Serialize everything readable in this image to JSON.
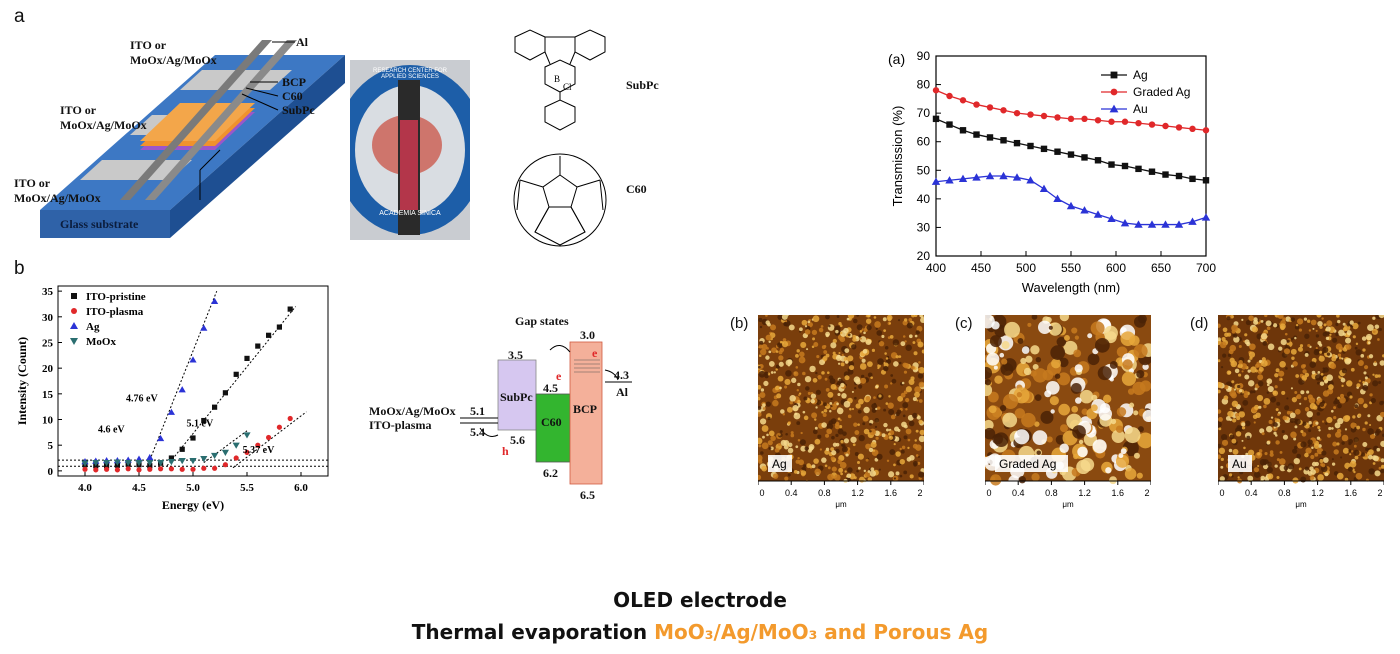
{
  "figure_a_left": {
    "panel_label": "a",
    "device_labels": {
      "top_electrode": [
        "ITO or",
        "MoOx/Ag/MoOx"
      ],
      "mid_electrode": [
        "ITO or",
        "MoOx/Ag/MoOx"
      ],
      "low_electrode": [
        "ITO or",
        "MoOx/Ag/MoOx"
      ],
      "substrate": "Glass substrate",
      "al": "Al",
      "bcp": "BCP",
      "c60": "C60",
      "subpc": "SubPc"
    },
    "photo_text": [
      "RESEARCH CENTER FOR APPLIED SCIENCES",
      "ACADEMIA SINICA"
    ],
    "molecules": {
      "subpc": "SubPc",
      "c60": "C60",
      "atom_b": "B",
      "atom_cl": "Cl"
    }
  },
  "figure_b_left": {
    "panel_label": "b",
    "chart_data": {
      "type": "scatter",
      "xlabel": "Energy (eV)",
      "ylabel": "Intensity (Count)",
      "xlim": [
        3.75,
        6.25
      ],
      "ylim": [
        -1,
        36
      ],
      "xticks": [
        "4.0",
        "4.5",
        "5.0",
        "5.5",
        "6.0"
      ],
      "yticks": [
        "0",
        "5",
        "10",
        "15",
        "20",
        "25",
        "30",
        "35"
      ],
      "legend_position": "top-left",
      "series": [
        {
          "name": "ITO-pristine",
          "color": "#111111",
          "marker": "square",
          "x": [
            4.0,
            4.1,
            4.2,
            4.3,
            4.4,
            4.5,
            4.6,
            4.7,
            4.8,
            4.9,
            5.0,
            5.1,
            5.2,
            5.3,
            5.4,
            5.5,
            5.6,
            5.7,
            5.8,
            5.9
          ],
          "y": [
            1.2,
            1.0,
            1.0,
            1.1,
            1.3,
            1.2,
            1.0,
            1.5,
            2.5,
            4.2,
            6.4,
            9.8,
            12.4,
            15.2,
            18.8,
            21.9,
            24.3,
            26.4,
            28.0,
            31.5
          ]
        },
        {
          "name": "ITO-plasma",
          "color": "#e0282a",
          "marker": "circle",
          "x": [
            4.0,
            4.1,
            4.2,
            4.3,
            4.4,
            4.5,
            4.6,
            4.7,
            4.8,
            4.9,
            5.0,
            5.1,
            5.2,
            5.3,
            5.4,
            5.5,
            5.6,
            5.7,
            5.8,
            5.9
          ],
          "y": [
            0.3,
            0.2,
            0.3,
            0.2,
            0.4,
            0.2,
            0.3,
            0.4,
            0.4,
            0.3,
            0.3,
            0.5,
            0.5,
            1.2,
            2.5,
            3.6,
            5.0,
            6.5,
            8.5,
            10.2
          ]
        },
        {
          "name": "Ag",
          "color": "#2b33d6",
          "marker": "triangle-up",
          "x": [
            4.0,
            4.1,
            4.2,
            4.3,
            4.4,
            4.5,
            4.6,
            4.7,
            4.8,
            4.9,
            5.0,
            5.1,
            5.2
          ],
          "y": [
            1.8,
            1.9,
            2.0,
            2.0,
            2.1,
            2.3,
            2.6,
            6.3,
            11.4,
            15.8,
            21.6,
            27.8,
            33.0
          ]
        },
        {
          "name": "MoOx",
          "color": "#2a6e70",
          "marker": "triangle-down",
          "x": [
            4.0,
            4.1,
            4.2,
            4.3,
            4.4,
            4.5,
            4.6,
            4.7,
            4.8,
            4.9,
            5.0,
            5.1,
            5.2,
            5.3,
            5.4,
            5.5
          ],
          "y": [
            1.5,
            1.6,
            1.6,
            1.7,
            1.6,
            1.6,
            1.6,
            1.6,
            1.8,
            2.0,
            2.0,
            2.4,
            3.0,
            3.6,
            5.0,
            7.0
          ]
        }
      ],
      "annotations": [
        "4.76 eV",
        "4.6 eV",
        "5.1 eV",
        "5.37 eV"
      ]
    },
    "energy_diagram": {
      "gap_states": "Gap states",
      "left_labels": [
        "MoOx/Ag/MoOx",
        "ITO-plasma"
      ],
      "levels": {
        "anode_top": "5.1",
        "anode_bottom": "5.4",
        "subpc_lumo": "3.5",
        "subpc_homo": "5.6",
        "c60_lumo": "4.5",
        "c60_homo": "6.2",
        "bcp_lumo": "3.0",
        "bcp_homo": "6.5",
        "al": "4.3"
      },
      "blocks": {
        "subpc": "SubPc",
        "c60": "C60",
        "bcp": "BCP",
        "al": "Al"
      },
      "carriers": {
        "electron": "e",
        "hole": "h"
      },
      "colors": {
        "subpc": "#d6c7f0",
        "c60": "#33b52f",
        "bcp": "#f4b09a"
      }
    }
  },
  "figure_right": {
    "panel_label": "(a)",
    "chart_data": {
      "type": "line",
      "xlabel": "Wavelength (nm)",
      "ylabel": "Transmission (%)",
      "xlim": [
        400,
        700
      ],
      "ylim": [
        20,
        90
      ],
      "xticks": [
        "400",
        "450",
        "500",
        "550",
        "600",
        "650",
        "700"
      ],
      "yticks": [
        "20",
        "30",
        "40",
        "50",
        "60",
        "70",
        "80",
        "90"
      ],
      "legend_position": "top-right",
      "x": [
        400,
        415,
        430,
        445,
        460,
        475,
        490,
        505,
        520,
        535,
        550,
        565,
        580,
        595,
        610,
        625,
        640,
        655,
        670,
        685,
        700
      ],
      "series": [
        {
          "name": "Ag",
          "color": "#111111",
          "marker": "square",
          "values": [
            68,
            66,
            64,
            62.5,
            61.5,
            60.5,
            59.5,
            58.5,
            57.5,
            56.5,
            55.5,
            54.5,
            53.5,
            52,
            51.5,
            50.5,
            49.5,
            48.5,
            48,
            47,
            46.5
          ]
        },
        {
          "name": "Graded Ag",
          "color": "#e0282a",
          "marker": "circle",
          "values": [
            78,
            76,
            74.5,
            73,
            72,
            71,
            70,
            69.5,
            69,
            68.5,
            68,
            68,
            67.5,
            67,
            67,
            66.5,
            66,
            65.5,
            65,
            64.5,
            64
          ]
        },
        {
          "name": "Au",
          "color": "#2b33d6",
          "marker": "triangle-up",
          "values": [
            46,
            46.5,
            47,
            47.5,
            48,
            48,
            47.5,
            46.5,
            43.5,
            40,
            37.5,
            36,
            34.5,
            33,
            31.5,
            31,
            31,
            31,
            31,
            32,
            33.5
          ]
        }
      ]
    },
    "afm_panels": [
      {
        "letter": "(b)",
        "label": "Ag",
        "xticks": [
          "0",
          "0.4",
          "0.8",
          "1.2",
          "1.6",
          "2"
        ],
        "unit": "μm"
      },
      {
        "letter": "(c)",
        "label": "Graded Ag",
        "xticks": [
          "0",
          "0.4",
          "0.8",
          "1.2",
          "1.6",
          "2"
        ],
        "unit": "μm"
      },
      {
        "letter": "(d)",
        "label": "Au",
        "xticks": [
          "0",
          "0.4",
          "0.8",
          "1.2",
          "1.6",
          "2"
        ],
        "unit": "μm"
      }
    ]
  },
  "caption": {
    "line1": "OLED electrode",
    "line2_prefix": "Thermal evaporation ",
    "line2_highlight": "MoO₃/Ag/MoO₃ and Porous Ag"
  }
}
